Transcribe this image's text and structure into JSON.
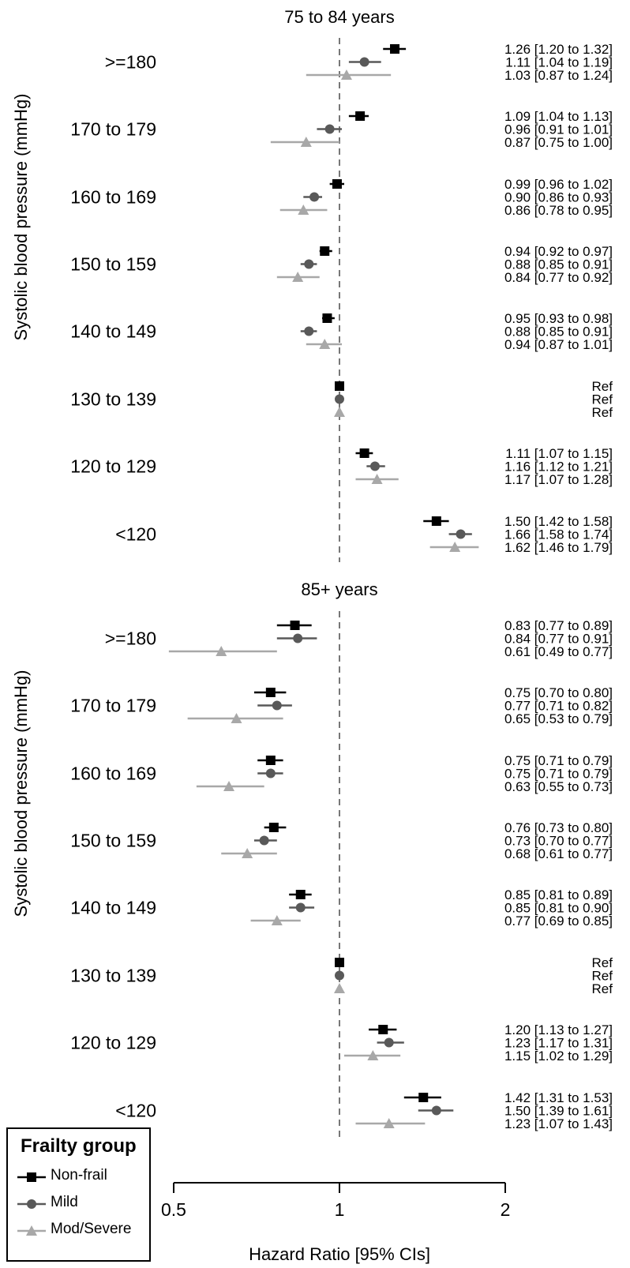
{
  "chart_data": {
    "type": "forest",
    "xlabel": "Hazard Ratio [95% CIs]",
    "x_scale": "log",
    "xlim": [
      0.5,
      2
    ],
    "xticks": [
      "0.5",
      "1",
      "2"
    ],
    "reference_line": 1,
    "ylabel": "Systolic blood pressure (mmHg)",
    "categories": [
      ">=180",
      "170 to 179",
      "160 to 169",
      "150 to 159",
      "140 to 149",
      "130 to 139",
      "120 to 129",
      "<120"
    ],
    "series_styles": [
      {
        "name": "Non-frail",
        "color": "#000000",
        "marker": "square"
      },
      {
        "name": "Mild",
        "color": "#595959",
        "marker": "circle"
      },
      {
        "name": "Mod/Severe",
        "color": "#a8a8a8",
        "marker": "triangle"
      }
    ],
    "panels": [
      {
        "title": "75 to 84 years",
        "series": [
          {
            "name": "Non-frail",
            "values": [
              [
                1.26,
                1.2,
                1.32
              ],
              [
                1.09,
                1.04,
                1.13
              ],
              [
                0.99,
                0.96,
                1.02
              ],
              [
                0.94,
                0.92,
                0.97
              ],
              [
                0.95,
                0.93,
                0.98
              ],
              null,
              [
                1.11,
                1.07,
                1.15
              ],
              [
                1.5,
                1.42,
                1.58
              ]
            ],
            "labels": [
              "1.26 [1.20 to 1.32]",
              "1.09 [1.04 to 1.13]",
              "0.99 [0.96 to 1.02]",
              "0.94 [0.92 to 0.97]",
              "0.95 [0.93 to 0.98]",
              "Ref",
              "1.11 [1.07 to 1.15]",
              "1.50 [1.42 to 1.58]"
            ]
          },
          {
            "name": "Mild",
            "values": [
              [
                1.11,
                1.04,
                1.19
              ],
              [
                0.96,
                0.91,
                1.01
              ],
              [
                0.9,
                0.86,
                0.93
              ],
              [
                0.88,
                0.85,
                0.91
              ],
              [
                0.88,
                0.85,
                0.91
              ],
              null,
              [
                1.16,
                1.12,
                1.21
              ],
              [
                1.66,
                1.58,
                1.74
              ]
            ],
            "labels": [
              "1.11 [1.04 to 1.19]",
              "0.96 [0.91 to 1.01]",
              "0.90 [0.86 to 0.93]",
              "0.88 [0.85 to 0.91]",
              "0.88 [0.85 to 0.91]",
              "Ref",
              "1.16 [1.12 to 1.21]",
              "1.66 [1.58 to 1.74]"
            ]
          },
          {
            "name": "Mod/Severe",
            "values": [
              [
                1.03,
                0.87,
                1.24
              ],
              [
                0.87,
                0.75,
                1.0
              ],
              [
                0.86,
                0.78,
                0.95
              ],
              [
                0.84,
                0.77,
                0.92
              ],
              [
                0.94,
                0.87,
                1.01
              ],
              null,
              [
                1.17,
                1.07,
                1.28
              ],
              [
                1.62,
                1.46,
                1.79
              ]
            ],
            "labels": [
              "1.03 [0.87 to 1.24]",
              "0.87 [0.75 to 1.00]",
              "0.86 [0.78 to 0.95]",
              "0.84 [0.77 to 0.92]",
              "0.94 [0.87 to 1.01]",
              "Ref",
              "1.17 [1.07 to 1.28]",
              "1.62 [1.46 to 1.79]"
            ]
          }
        ]
      },
      {
        "title": "85+ years",
        "series": [
          {
            "name": "Non-frail",
            "values": [
              [
                0.83,
                0.77,
                0.89
              ],
              [
                0.75,
                0.7,
                0.8
              ],
              [
                0.75,
                0.71,
                0.79
              ],
              [
                0.76,
                0.73,
                0.8
              ],
              [
                0.85,
                0.81,
                0.89
              ],
              null,
              [
                1.2,
                1.13,
                1.27
              ],
              [
                1.42,
                1.31,
                1.53
              ]
            ],
            "labels": [
              "0.83 [0.77 to 0.89]",
              "0.75 [0.70 to 0.80]",
              "0.75 [0.71 to 0.79]",
              "0.76 [0.73 to 0.80]",
              "0.85 [0.81 to 0.89]",
              "Ref",
              "1.20 [1.13 to 1.27]",
              "1.42 [1.31 to 1.53]"
            ]
          },
          {
            "name": "Mild",
            "values": [
              [
                0.84,
                0.77,
                0.91
              ],
              [
                0.77,
                0.71,
                0.82
              ],
              [
                0.75,
                0.71,
                0.79
              ],
              [
                0.73,
                0.7,
                0.77
              ],
              [
                0.85,
                0.81,
                0.9
              ],
              null,
              [
                1.23,
                1.17,
                1.31
              ],
              [
                1.5,
                1.39,
                1.61
              ]
            ],
            "labels": [
              "0.84 [0.77 to 0.91]",
              "0.77 [0.71 to 0.82]",
              "0.75 [0.71 to 0.79]",
              "0.73 [0.70 to 0.77]",
              "0.85 [0.81 to 0.90]",
              "Ref",
              "1.23 [1.17 to 1.31]",
              "1.50 [1.39 to 1.61]"
            ]
          },
          {
            "name": "Mod/Severe",
            "values": [
              [
                0.61,
                0.49,
                0.77
              ],
              [
                0.65,
                0.53,
                0.79
              ],
              [
                0.63,
                0.55,
                0.73
              ],
              [
                0.68,
                0.61,
                0.77
              ],
              [
                0.77,
                0.69,
                0.85
              ],
              null,
              [
                1.15,
                1.02,
                1.29
              ],
              [
                1.23,
                1.07,
                1.43
              ]
            ],
            "labels": [
              "0.61 [0.49 to 0.77]",
              "0.65 [0.53 to 0.79]",
              "0.63 [0.55 to 0.73]",
              "0.68 [0.61 to 0.77]",
              "0.77 [0.69 to 0.85]",
              "Ref",
              "1.15 [1.02 to 1.29]",
              "1.23 [1.07 to 1.43]"
            ]
          }
        ]
      }
    ]
  },
  "legend": {
    "title": "Frailty group",
    "items": [
      "Non-frail",
      "Mild",
      "Mod/Severe"
    ]
  }
}
